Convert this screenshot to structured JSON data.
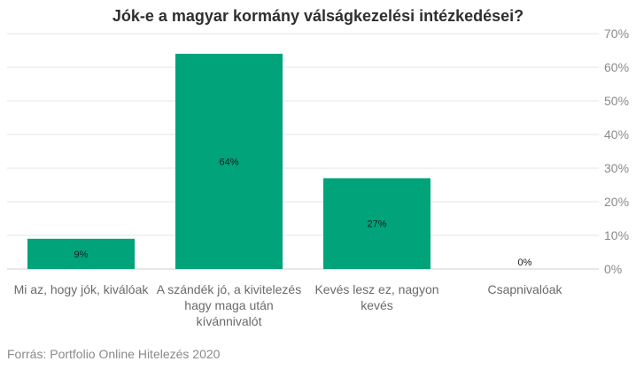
{
  "chart_data": {
    "type": "bar",
    "title": "Jók-e a magyar kormány válságkezelési intézkedései?",
    "categories": [
      "Mi az, hogy jók, kiválóak",
      "A szándék jó, a kivitelezés hagy maga után kívánnivalót",
      "Kevés lesz ez, nagyon kevés",
      "Csapnivalóak"
    ],
    "values": [
      9,
      64,
      27,
      0
    ],
    "value_labels": [
      "9%",
      "64%",
      "27%",
      "0%"
    ],
    "y_ticks": [
      "0%",
      "10%",
      "20%",
      "30%",
      "40%",
      "50%",
      "60%",
      "70%"
    ],
    "ylim": [
      0,
      70
    ],
    "y_axis_position": "right",
    "grid": true,
    "bar_color": "#00a37a"
  },
  "source": "Forrás: Portfolio Online Hitelezés 2020"
}
